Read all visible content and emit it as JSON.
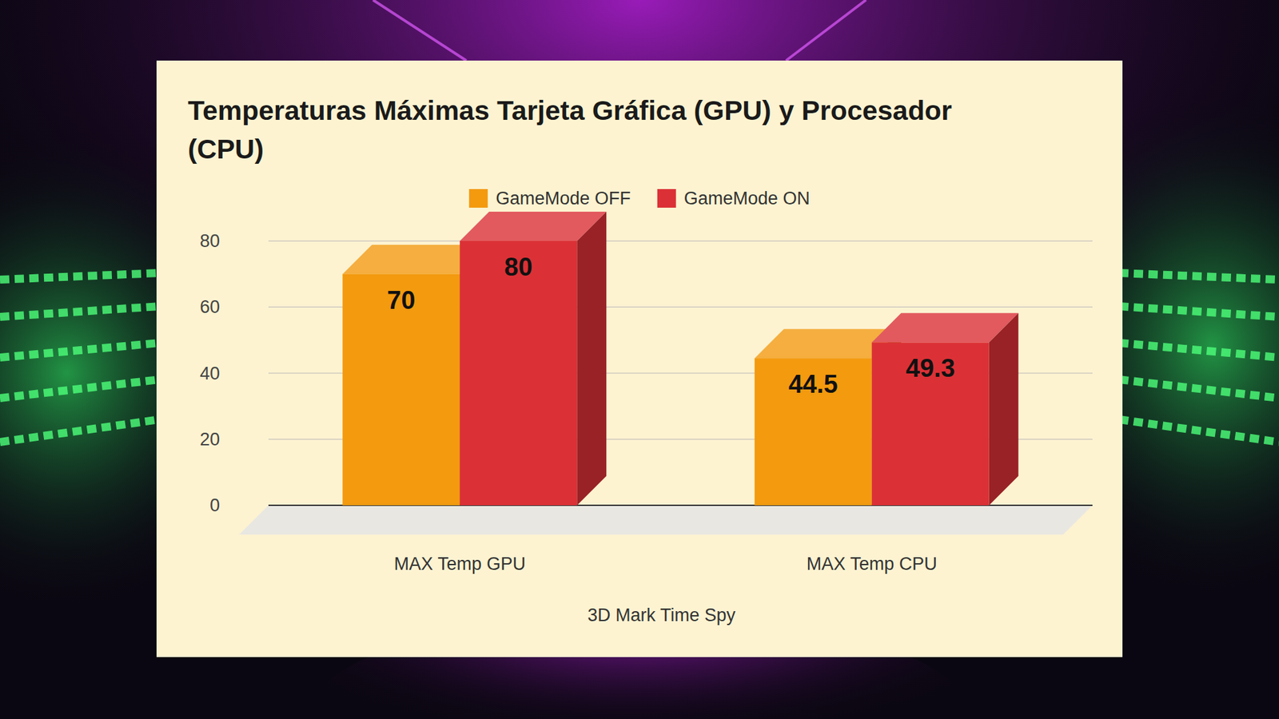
{
  "chart_data": {
    "type": "bar",
    "title": "Temperaturas Máximas Tarjeta Gráfica (GPU) y Procesador (CPU)",
    "x_label": "3D Mark Time Spy",
    "categories": [
      "MAX Temp GPU",
      "MAX Temp CPU"
    ],
    "series": [
      {
        "name": "GameMode OFF",
        "color": "#f39a0f",
        "values": [
          70,
          44.5
        ]
      },
      {
        "name": "GameMode ON",
        "color": "#db3136",
        "values": [
          80,
          49.3
        ]
      }
    ],
    "ylim": [
      0,
      80
    ],
    "yticks": [
      0,
      20,
      40,
      60,
      80
    ],
    "grid": true,
    "legend": "top",
    "data_labels": true
  }
}
